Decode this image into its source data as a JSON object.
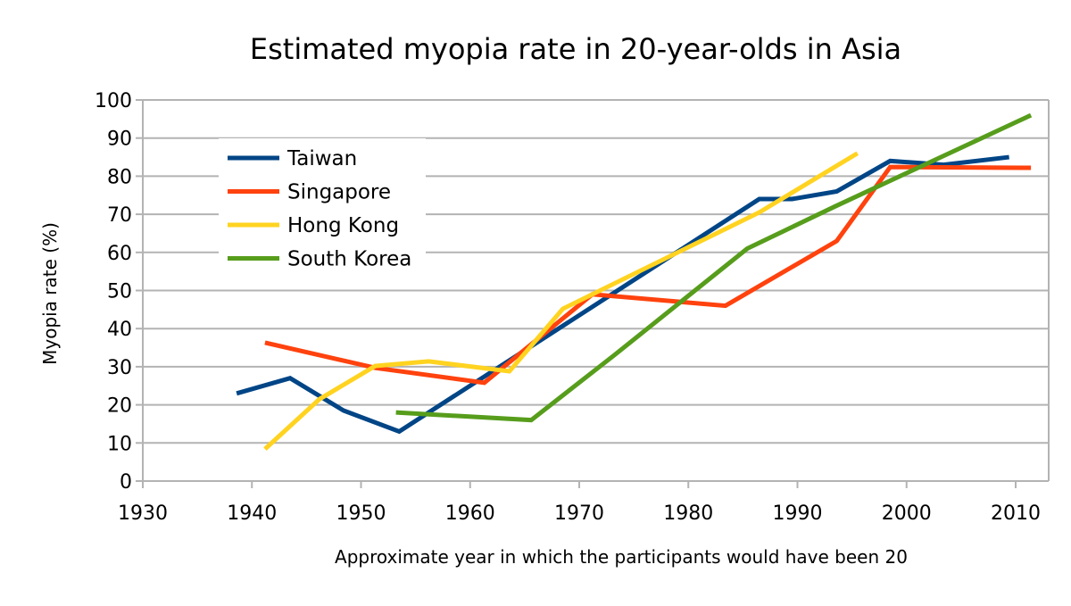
{
  "chart_data": {
    "type": "line",
    "title": "Estimated myopia rate in 20-year-olds in Asia",
    "xlabel": "Approximate year in which the participants would have been 20",
    "ylabel": "Myopia rate (%)",
    "xlim": [
      1930,
      2013
    ],
    "ylim": [
      0,
      100
    ],
    "xticks": [
      1930,
      1940,
      1950,
      1960,
      1970,
      1980,
      1990,
      2000,
      2010
    ],
    "yticks": [
      0,
      10,
      20,
      30,
      40,
      50,
      60,
      70,
      80,
      90,
      100
    ],
    "grid": "horizontal",
    "legend_position": "top-left",
    "series": [
      {
        "name": "Taiwan",
        "color": "#004586",
        "points": [
          [
            1938.6,
            23
          ],
          [
            1943.5,
            27
          ],
          [
            1948.4,
            18.5
          ],
          [
            1953.5,
            13
          ],
          [
            1986.5,
            74
          ],
          [
            1989.5,
            74
          ],
          [
            1993.6,
            76
          ],
          [
            1998.5,
            84
          ],
          [
            2003.4,
            83
          ],
          [
            2009.4,
            85
          ]
        ]
      },
      {
        "name": "Singapore",
        "color": "#ff420e",
        "points": [
          [
            1941.2,
            36.3
          ],
          [
            1951.3,
            29.7
          ],
          [
            1961.3,
            25.8
          ],
          [
            1971.2,
            49
          ],
          [
            1983.4,
            46
          ],
          [
            1993.6,
            63
          ],
          [
            1998.5,
            82.4
          ],
          [
            2011.4,
            82.2
          ]
        ]
      },
      {
        "name": "Hong Kong",
        "color": "#ffd320",
        "points": [
          [
            1941.2,
            8.4
          ],
          [
            1946.2,
            21.5
          ],
          [
            1951.3,
            30.2
          ],
          [
            1956.2,
            31.4
          ],
          [
            1963.6,
            28.8
          ],
          [
            1968.5,
            45.2
          ],
          [
            1986.5,
            70.5
          ],
          [
            1995.5,
            86
          ]
        ]
      },
      {
        "name": "South Korea",
        "color": "#579d1c",
        "points": [
          [
            1953.2,
            18
          ],
          [
            1965.6,
            16
          ],
          [
            1973.2,
            33
          ],
          [
            1985.4,
            61
          ],
          [
            1993.4,
            72
          ],
          [
            2011.4,
            96
          ]
        ]
      }
    ]
  }
}
